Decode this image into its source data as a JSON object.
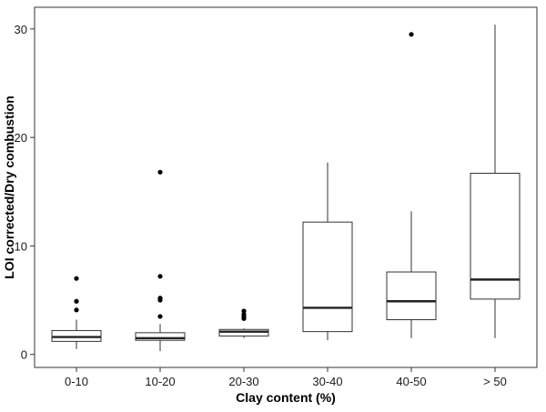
{
  "chart_data": {
    "type": "boxplot",
    "title": "",
    "xlabel": "Clay content (%)",
    "ylabel": "LOI corrected/Dry combustion",
    "ylim": [
      -1.2,
      32
    ],
    "yticks": [
      0,
      10,
      20,
      30
    ],
    "grid": false,
    "legend": "none",
    "categories": [
      "0-10",
      "10-20",
      "20-30",
      "30-40",
      "40-50",
      "> 50"
    ],
    "boxes": [
      {
        "whisker_low": 0.5,
        "q1": 1.2,
        "median": 1.6,
        "q3": 2.2,
        "whisker_high": 3.2,
        "outliers": [
          4.1,
          4.9,
          7.0
        ]
      },
      {
        "whisker_low": 0.3,
        "q1": 1.3,
        "median": 1.5,
        "q3": 2.0,
        "whisker_high": 2.8,
        "outliers": [
          3.5,
          5.0,
          5.2,
          7.2,
          16.8
        ]
      },
      {
        "whisker_low": 1.5,
        "q1": 1.7,
        "median": 2.1,
        "q3": 2.3,
        "whisker_high": 2.4,
        "outliers": [
          3.3,
          3.5,
          3.7,
          4.0
        ]
      },
      {
        "whisker_low": 1.3,
        "q1": 2.1,
        "median": 4.3,
        "q3": 12.2,
        "whisker_high": 17.7,
        "outliers": []
      },
      {
        "whisker_low": 1.5,
        "q1": 3.2,
        "median": 4.9,
        "q3": 7.6,
        "whisker_high": 13.2,
        "outliers": [
          29.5
        ]
      },
      {
        "whisker_low": 1.5,
        "q1": 5.1,
        "median": 6.9,
        "q3": 16.7,
        "whisker_high": 30.4,
        "outliers": []
      }
    ]
  }
}
